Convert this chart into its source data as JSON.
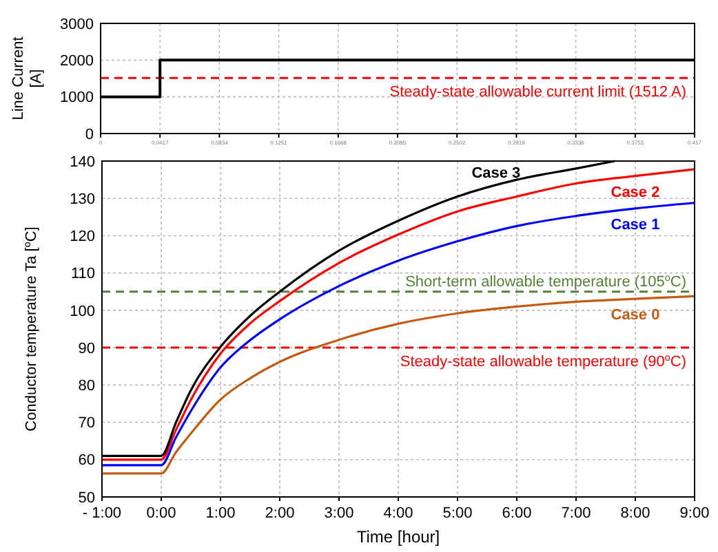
{
  "chart_data": [
    {
      "type": "step",
      "ylabel": "Line Current [A]",
      "xlim": [
        0,
        0.417
      ],
      "xticks": [
        0,
        0.0417,
        0.0834,
        0.1251,
        0.1668,
        0.2085,
        0.2502,
        0.2919,
        0.3336,
        0.3753,
        0.417
      ],
      "ylim": [
        0,
        3000
      ],
      "yticks": [
        0,
        1000,
        2000,
        3000
      ],
      "grid": true,
      "line_style": "solid",
      "series": [
        {
          "color": "#000000",
          "x": [
            0,
            0.0417,
            0.417
          ],
          "values": [
            1000,
            2000,
            2000
          ]
        }
      ],
      "ref_lines": [
        {
          "axis": "y",
          "value": 1512,
          "label": "Steady-state allowable current limit (1512 A)",
          "color": "#ff0000",
          "line_style": "dashed"
        }
      ]
    },
    {
      "type": "line",
      "xlabel": "Time [hour]",
      "ylabel": "Conductor temperature Ta [$^{o}$C]",
      "xlim": [
        -1,
        9
      ],
      "xticks": [
        {
          "value": -1,
          "label": "- 1:00"
        },
        {
          "value": 0,
          "label": "0:00"
        },
        {
          "value": 1,
          "label": "1:00"
        },
        {
          "value": 2,
          "label": "2:00"
        },
        {
          "value": 3,
          "label": "3:00"
        },
        {
          "value": 4,
          "label": "4:00"
        },
        {
          "value": 5,
          "label": "5:00"
        },
        {
          "value": 6,
          "label": "6:00"
        },
        {
          "value": 7,
          "label": "7:00"
        },
        {
          "value": 8,
          "label": "8:00"
        },
        {
          "value": 9,
          "label": "9:00"
        }
      ],
      "ylim": [
        50,
        140
      ],
      "yticks": [
        50,
        60,
        70,
        80,
        90,
        100,
        110,
        120,
        130,
        140
      ],
      "grid": true,
      "line_style": "solid",
      "series": [
        {
          "name": "Case 0",
          "color": "#c55a11",
          "x": [
            -1,
            0,
            0.25,
            0.5,
            1,
            1.5,
            2,
            3,
            4,
            5,
            6,
            7,
            8,
            9
          ],
          "values": [
            56.3,
            56.3,
            62,
            67,
            76.1,
            81.8,
            86.2,
            92.1,
            96.4,
            99.2,
            101,
            102.3,
            103.1,
            103.8
          ]
        },
        {
          "name": "Case 1",
          "color": "#0000ff",
          "x": [
            -1,
            0,
            0.25,
            0.5,
            1,
            1.5,
            2,
            3,
            4,
            5,
            6,
            7,
            8,
            9
          ],
          "values": [
            58.5,
            58.5,
            66,
            73,
            84.7,
            92,
            97.6,
            106.5,
            113.3,
            118.5,
            122.6,
            125.3,
            127.3,
            128.8
          ]
        },
        {
          "name": "Case 2",
          "color": "#ff0000",
          "x": [
            -1,
            0,
            0.25,
            0.5,
            1,
            1.5,
            2,
            3,
            4,
            5,
            6,
            7,
            8,
            9
          ],
          "values": [
            60,
            60,
            68,
            76,
            88.4,
            96.5,
            102.5,
            112.7,
            120.3,
            126.5,
            130.5,
            134,
            136,
            137.8
          ]
        },
        {
          "name": "Case 3",
          "color": "#000000",
          "x": [
            -1,
            0,
            0.25,
            0.5,
            1,
            1.5,
            2,
            3,
            4,
            5,
            6,
            7,
            7.65
          ],
          "values": [
            61,
            61,
            70,
            78.6,
            90.2,
            98.5,
            105,
            116,
            124,
            130.5,
            135,
            138,
            140
          ]
        }
      ],
      "ref_lines": [
        {
          "axis": "y",
          "value": 105,
          "label": "Short-term allowable temperature (105$^{o}$C)",
          "color": "#548235",
          "line_style": "dashed"
        },
        {
          "axis": "y",
          "value": 90,
          "label": "Steady-state allowable temperature (90$^{o}$C)",
          "color": "#ff0000",
          "line_style": "dashed"
        }
      ]
    }
  ]
}
